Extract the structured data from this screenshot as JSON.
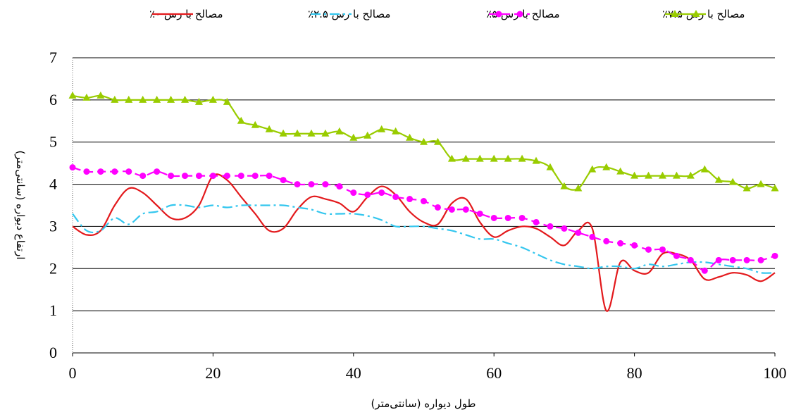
{
  "chart_data": {
    "type": "line",
    "xlabel": "طول دیواره (سانتی‌متر)",
    "ylabel": "ارتفاع دیواره (سانتی‌متر)",
    "x": [
      0,
      2,
      4,
      6,
      8,
      10,
      12,
      14,
      16,
      18,
      20,
      22,
      24,
      26,
      28,
      30,
      32,
      34,
      36,
      38,
      40,
      42,
      44,
      46,
      48,
      50,
      52,
      54,
      56,
      58,
      60,
      62,
      64,
      66,
      68,
      70,
      72,
      74,
      76,
      78,
      80,
      82,
      84,
      86,
      88,
      90,
      92,
      94,
      96,
      98,
      100
    ],
    "series": [
      {
        "name": "مصالح با رس ۰٪",
        "color": "#e3191c",
        "style": "solid",
        "marker": "none",
        "values": [
          3.0,
          2.8,
          2.9,
          3.5,
          3.9,
          3.8,
          3.5,
          3.2,
          3.2,
          3.5,
          4.2,
          4.1,
          3.7,
          3.3,
          2.9,
          2.95,
          3.4,
          3.7,
          3.65,
          3.55,
          3.35,
          3.7,
          3.95,
          3.75,
          3.35,
          3.1,
          3.05,
          3.55,
          3.65,
          3.1,
          2.75,
          2.9,
          3.0,
          2.95,
          2.75,
          2.55,
          2.9,
          2.95,
          1.0,
          2.15,
          1.95,
          1.9,
          2.35,
          2.35,
          2.2,
          1.75,
          1.8,
          1.9,
          1.85,
          1.7,
          1.9
        ]
      },
      {
        "name": "مصالح با رس ۲.۵٪",
        "color": "#33c6ee",
        "style": "dashdot",
        "marker": "none",
        "values": [
          3.3,
          2.9,
          2.9,
          3.2,
          3.05,
          3.3,
          3.35,
          3.5,
          3.5,
          3.45,
          3.5,
          3.45,
          3.5,
          3.5,
          3.5,
          3.5,
          3.45,
          3.4,
          3.3,
          3.3,
          3.3,
          3.25,
          3.15,
          3.0,
          3.0,
          3.0,
          2.95,
          2.9,
          2.8,
          2.7,
          2.7,
          2.6,
          2.5,
          2.35,
          2.2,
          2.1,
          2.05,
          2.0,
          2.05,
          2.05,
          2.0,
          2.1,
          2.05,
          2.1,
          2.15,
          2.15,
          2.1,
          2.05,
          2.0,
          1.9,
          1.9
        ]
      },
      {
        "name": "مصالح با رس ۵٪",
        "color": "#ff00ff",
        "style": "dashed",
        "marker": "circle",
        "values": [
          4.4,
          4.3,
          4.3,
          4.3,
          4.3,
          4.2,
          4.3,
          4.2,
          4.2,
          4.2,
          4.2,
          4.2,
          4.2,
          4.2,
          4.2,
          4.1,
          4.0,
          4.0,
          4.0,
          3.95,
          3.8,
          3.75,
          3.8,
          3.7,
          3.65,
          3.6,
          3.45,
          3.4,
          3.4,
          3.3,
          3.2,
          3.2,
          3.2,
          3.1,
          3.0,
          2.95,
          2.85,
          2.75,
          2.65,
          2.6,
          2.55,
          2.45,
          2.45,
          2.3,
          2.2,
          1.95,
          2.2,
          2.2,
          2.2,
          2.2,
          2.3
        ]
      },
      {
        "name": "مصالح با رس ۷.۵٪",
        "color": "#99cc00",
        "style": "solid",
        "marker": "triangle",
        "values": [
          6.1,
          6.05,
          6.1,
          6.0,
          6.0,
          6.0,
          6.0,
          6.0,
          6.0,
          5.95,
          6.0,
          5.95,
          5.5,
          5.4,
          5.3,
          5.2,
          5.2,
          5.2,
          5.2,
          5.25,
          5.1,
          5.15,
          5.3,
          5.25,
          5.1,
          5.0,
          5.0,
          4.6,
          4.6,
          4.6,
          4.6,
          4.6,
          4.6,
          4.55,
          4.4,
          3.95,
          3.9,
          4.35,
          4.4,
          4.3,
          4.2,
          4.2,
          4.2,
          4.2,
          4.2,
          4.35,
          4.1,
          4.05,
          3.9,
          4.0,
          3.9
        ]
      }
    ],
    "xlim": [
      0,
      100
    ],
    "xticks": [
      0,
      20,
      40,
      60,
      80,
      100
    ],
    "ylim": [
      0,
      7
    ],
    "yticks": [
      0,
      1,
      2,
      3,
      4,
      5,
      6,
      7
    ],
    "grid": true,
    "legend": "top"
  }
}
